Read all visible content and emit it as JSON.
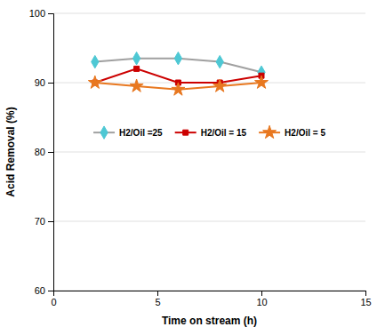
{
  "chart_data": {
    "type": "line",
    "xlabel": "Time on stream (h)",
    "ylabel": "Acid Removal (%)",
    "x": [
      2,
      4,
      6,
      8,
      10
    ],
    "series": [
      {
        "name": "H2/Oil =25",
        "values": [
          93.0,
          93.5,
          93.5,
          93.0,
          91.5
        ],
        "color": "#a0a0a0",
        "colors": [
          "#4ec8d4",
          "#4ec8d4",
          "#4ec8d4",
          "#4ec8d4",
          "#4ec8d4"
        ],
        "marker": "diamond"
      },
      {
        "name": "H2/Oil = 15",
        "values": [
          90.0,
          92.0,
          90.0,
          90.0,
          91.0
        ],
        "color": "#cc0000",
        "marker": "square"
      },
      {
        "name": "H2/Oil = 5",
        "values": [
          90.0,
          89.5,
          89.0,
          89.5,
          90.0
        ],
        "color": "#e87820",
        "marker": "star"
      }
    ],
    "xlim": [
      0,
      15
    ],
    "ylim": [
      60,
      100
    ],
    "xticks": [
      0,
      5,
      10,
      15
    ],
    "yticks": [
      60,
      70,
      80,
      90,
      100
    ],
    "grid": true,
    "legend": "center"
  }
}
